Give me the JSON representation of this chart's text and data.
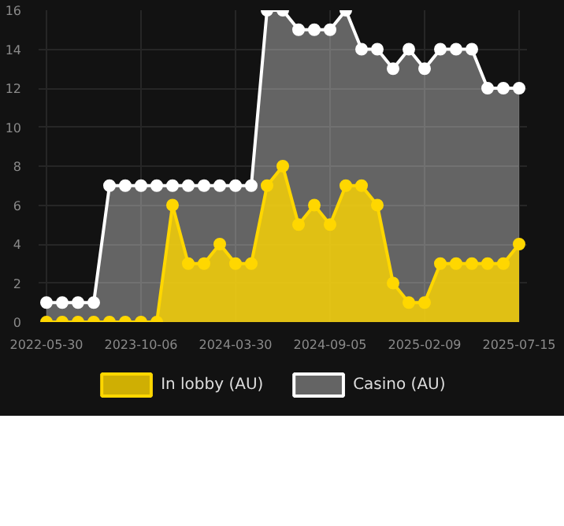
{
  "chart_data": {
    "type": "area",
    "categories": [
      "2022-05-30",
      null,
      null,
      null,
      null,
      null,
      "2023-10-06",
      null,
      null,
      null,
      null,
      null,
      "2024-03-30",
      null,
      null,
      null,
      null,
      null,
      "2024-09-05",
      null,
      null,
      null,
      null,
      null,
      "2025-02-09",
      null,
      null,
      null,
      null,
      null,
      "2025-07-15"
    ],
    "series": [
      {
        "name": "In lobby (AU)",
        "color": "#ffd700",
        "values": [
          0,
          0,
          0,
          0,
          0,
          0,
          0,
          0,
          6,
          3,
          3,
          4,
          3,
          3,
          7,
          8,
          5,
          6,
          5,
          7,
          7,
          6,
          2,
          1,
          1,
          3,
          3,
          3,
          3,
          3,
          4
        ]
      },
      {
        "name": "Casino (AU)",
        "color": "#ffffff",
        "values": [
          1,
          1,
          1,
          1,
          7,
          7,
          7,
          7,
          7,
          7,
          7,
          7,
          7,
          7,
          16,
          16,
          15,
          15,
          15,
          16,
          14,
          14,
          13,
          14,
          13,
          14,
          14,
          14,
          12,
          12,
          12
        ]
      }
    ],
    "ylim": [
      0,
      16
    ],
    "yticks": [
      0,
      2,
      4,
      6,
      8,
      10,
      12,
      14,
      16
    ],
    "grid": true,
    "legend": "bottom",
    "marker": "circle",
    "line_style": "solid"
  }
}
